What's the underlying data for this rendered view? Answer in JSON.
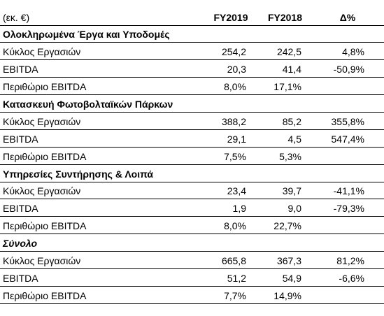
{
  "header": [
    "(εκ. €)",
    "FY2019",
    "FY2018",
    "Δ%"
  ],
  "sections": [
    {
      "title": "Ολοκληρωμένα Έργα και Υποδομές",
      "rows": [
        [
          "Κύκλος Εργασιών",
          "254,2",
          "242,5",
          "4,8%"
        ],
        [
          "EBITDA",
          "20,3",
          "41,4",
          "-50,9%"
        ],
        [
          "Περιθώριο EBITDA",
          "8,0%",
          "17,1%"
        ]
      ]
    },
    {
      "title": "Κατασκευή Φωτοβολταϊκών Πάρκων",
      "rows": [
        [
          "Κύκλος Εργασιών",
          "388,2",
          "85,2",
          "355,8%"
        ],
        [
          "EBITDA",
          "29,1",
          "4,5",
          "547,4%"
        ],
        [
          "Περιθώριο EBITDA",
          "7,5%",
          "5,3%"
        ]
      ]
    },
    {
      "title": "Υπηρεσίες Συντήρησης & Λοιπά",
      "rows": [
        [
          "Κύκλος Εργασιών",
          "23,4",
          "39,7",
          "-41,1%"
        ],
        [
          "EBITDA",
          "1,9",
          "9,0",
          "-79,3%"
        ],
        [
          "Περιθώριο EBITDA",
          "8,0%",
          "22,7%"
        ]
      ]
    },
    {
      "title": "Σύνολο",
      "rows": [
        [
          "Κύκλος Εργασιών",
          "665,8",
          "367,3",
          "81,2%"
        ],
        [
          "EBITDA",
          "51,2",
          "54,9",
          "-6,6%"
        ],
        [
          "Περιθώριο EBITDA",
          "7,7%",
          "14,9%"
        ]
      ]
    }
  ]
}
